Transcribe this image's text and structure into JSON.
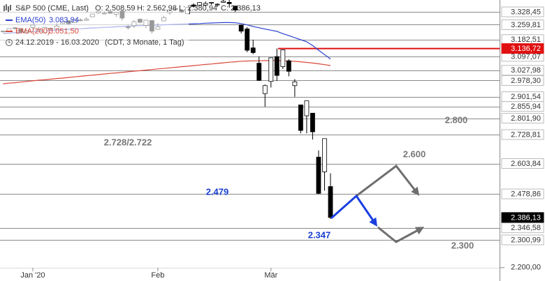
{
  "chart_data": {
    "type": "candlestick",
    "title": "S&P 500 (CME, Last)",
    "legend_values": [
      "O: 2.508,59",
      "H: 2.562,98",
      "L: 2.380,94",
      "C: 2.386,13"
    ],
    "period": "24.12.2019 - 16.03.2020",
    "period_note": "(CDT, 3 Monate, 1 Tag)",
    "categories": [
      null,
      null,
      null,
      null,
      null,
      "Jan '20",
      null,
      null,
      null,
      null,
      null,
      null,
      null,
      null,
      null,
      null,
      null,
      null,
      null,
      null,
      null,
      null,
      null,
      null,
      null,
      null,
      "Feb",
      null,
      null,
      null,
      null,
      null,
      null,
      null,
      null,
      null,
      null,
      null,
      null,
      null,
      null,
      null,
      null,
      null,
      null,
      "Mär",
      null,
      null,
      null,
      null,
      null,
      null,
      null,
      null,
      null,
      null
    ],
    "open": [
      3226,
      3227,
      3244,
      3240,
      3217,
      3245,
      3226,
      3218,
      3241,
      3238,
      3266,
      3281,
      3271,
      3285,
      3283,
      3302,
      3323,
      3321,
      3330,
      3316,
      3333,
      3248,
      3255,
      3289,
      3256,
      3282,
      3236,
      3280,
      3324,
      3344,
      3335,
      3318,
      3366,
      3365,
      3365,
      3378,
      3370,
      3380,
      3380,
      3360,
      3258,
      3238,
      3140,
      3063,
      2916,
      2974,
      3096,
      3046,
      3075,
      2954,
      2863,
      2813,
      2825,
      2631,
      2569,
      2508.59
    ],
    "high": [
      3230,
      3241,
      3248,
      3241,
      3232,
      3259,
      3247,
      3247,
      3245,
      3268,
      3276,
      3283,
      3288,
      3294,
      3299,
      3317,
      3330,
      3330,
      3338,
      3327,
      3334,
      3259,
      3285,
      3293,
      3286,
      3282,
      3268,
      3306,
      3337,
      3347,
      3342,
      3352,
      3375,
      3381,
      3385,
      3381,
      3375,
      3394,
      3393,
      3360,
      3260,
      3247,
      3182,
      3097,
      2959,
      3091,
      3137,
      3130,
      3083,
      2985,
      2863,
      2882,
      2825,
      2660,
      2711,
      2562.98
    ],
    "low": [
      3220,
      3225,
      3235,
      3215,
      3213,
      3236,
      3222,
      3215,
      3232,
      3236,
      3263,
      3260,
      3269,
      3278,
      3281,
      3302,
      3318,
      3316,
      3320,
      3302,
      3282,
      3234,
      3243,
      3268,
      3242,
      3214,
      3235,
      3280,
      3313,
      3334,
      3322,
      3317,
      3352,
      3365,
      3360,
      3367,
      3355,
      3379,
      3351,
      3328,
      3214,
      3118,
      3108,
      2977,
      2855,
      2945,
      2976,
      3034,
      2999,
      2901,
      2734,
      2734,
      2707,
      2478,
      2492,
      2380.94
    ],
    "close": [
      3223,
      3240,
      3240,
      3221,
      3231,
      3258,
      3235,
      3246,
      3237,
      3253,
      3275,
      3265,
      3288,
      3283,
      3289,
      3317,
      3330,
      3321,
      3321,
      3326,
      3295,
      3244,
      3276,
      3273,
      3284,
      3226,
      3249,
      3298,
      3334,
      3346,
      3328,
      3352,
      3358,
      3379,
      3374,
      3380,
      3370,
      3386,
      3373,
      3338,
      3226,
      3128,
      3116,
      2979,
      2954,
      3090,
      3003,
      3130,
      3023,
      2972,
      2747,
      2882,
      2741,
      2481,
      2711,
      2386.13
    ],
    "up_color": "#ffffff",
    "down_color": "#000000",
    "series": [
      {
        "name": "EMA(50)",
        "value_label": "3.083,94",
        "color": "#2a3fd0",
        "values": [
          3214,
          3216,
          3218,
          3220,
          3222,
          3224,
          3226,
          3228,
          3230,
          3232,
          3234,
          3236,
          3238,
          3239,
          3241,
          3243,
          3244,
          3246,
          3247,
          3249,
          3250,
          3252,
          3253,
          3255,
          3256,
          3257,
          3258,
          3259,
          3261,
          3262,
          3263,
          3264,
          3265,
          3266,
          3268,
          3269,
          3270,
          3271,
          3271,
          3270,
          3266,
          3259,
          3251,
          3244,
          3237,
          3231,
          3225,
          3213,
          3203,
          3192,
          3182,
          3171,
          3152,
          3128,
          3106,
          3083.94
        ]
      },
      {
        "name": "EMA(200)",
        "value_label": "3.051,50",
        "color": "#d9473a",
        "values": [
          2963,
          2966,
          2968,
          2971,
          2974,
          2977,
          2980,
          2982,
          2985,
          2988,
          2990,
          2993,
          2996,
          2999,
          3002,
          3004,
          3007,
          3010,
          3013,
          3015,
          3018,
          3021,
          3024,
          3026,
          3029,
          3032,
          3035,
          3037,
          3040,
          3043,
          3046,
          3048,
          3051,
          3054,
          3057,
          3059,
          3062,
          3065,
          3068,
          3070,
          3073,
          3074,
          3075,
          3075,
          3076,
          3076,
          3076,
          3075,
          3074,
          3072,
          3070,
          3067,
          3064,
          3060,
          3056,
          3051.5
        ]
      }
    ],
    "levels": [
      {
        "value": 3328.45,
        "label": "3.328,45"
      },
      {
        "value": 3259.81,
        "label": "3.259,81"
      },
      {
        "value": 3182.51,
        "label": "3.182,51"
      },
      {
        "value": 3097.07,
        "label": "3.097,07"
      },
      {
        "value": 3027.98,
        "label": "3.027,98"
      },
      {
        "value": 2978.3,
        "label": "2.978,30"
      },
      {
        "value": 2901.54,
        "label": "2.901,54"
      },
      {
        "value": 2855.94,
        "label": "2.855,94"
      },
      {
        "value": 2801.9,
        "label": "2.801,90"
      },
      {
        "value": 2728.81,
        "label": "2.728,81"
      },
      {
        "value": 2603.84,
        "label": "2.603,84"
      },
      {
        "value": 2478.86,
        "label": "2.478,86"
      },
      {
        "value": 2346.58,
        "label": "2.346,58"
      },
      {
        "value": 2300.99,
        "label": "2.300,99"
      }
    ],
    "resistance": {
      "value": 3136.72,
      "label": "3.136,72",
      "color": "#e01010"
    },
    "last": {
      "value": 2386.13,
      "label": "2.386,13"
    },
    "annotations": [
      {
        "text": "2.800",
        "color": "#777777"
      },
      {
        "text": "2.600",
        "color": "#777777"
      },
      {
        "text": "2.728/2.722",
        "color": "#777777"
      },
      {
        "text": "2.479",
        "color": "#1a3fd0"
      },
      {
        "text": "2.347",
        "color": "#1a3fd0"
      },
      {
        "text": "2.300",
        "color": "#777777"
      }
    ],
    "ylim": [
      2170,
      3393
    ],
    "yticks": [
      {
        "value": 2200,
        "label": "2.200,00"
      }
    ],
    "log_scale": true
  }
}
